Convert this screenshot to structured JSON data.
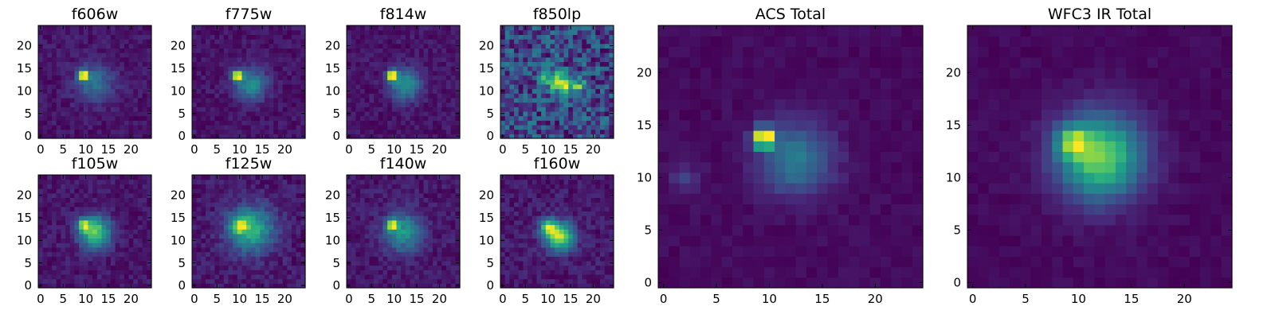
{
  "figure": {
    "background": "#ffffff",
    "colormap": "viridis"
  },
  "chart_data": [
    {
      "id": "f606w",
      "title": "f606w",
      "type": "heatmap",
      "size": "small",
      "grid_size": 25,
      "xlim": [
        0,
        24
      ],
      "ylim": [
        0,
        24
      ],
      "xticks": [
        0,
        5,
        10,
        15,
        20
      ],
      "yticks": [
        0,
        5,
        10,
        15,
        20
      ],
      "peaks": [
        {
          "x": 9.5,
          "y": 13.5,
          "amp": 1.0,
          "sigma": 0.7
        },
        {
          "x": 12,
          "y": 12,
          "amp": 0.28,
          "sigma": 3.0
        }
      ],
      "background": 0.16,
      "noise": 0.1,
      "seed": 11
    },
    {
      "id": "f775w",
      "title": "f775w",
      "type": "heatmap",
      "size": "small",
      "grid_size": 25,
      "xlim": [
        0,
        24
      ],
      "ylim": [
        0,
        24
      ],
      "xticks": [
        0,
        5,
        10,
        15,
        20
      ],
      "yticks": [
        0,
        5,
        10,
        15,
        20
      ],
      "peaks": [
        {
          "x": 9.5,
          "y": 13.5,
          "amp": 0.95,
          "sigma": 0.75
        },
        {
          "x": 12.5,
          "y": 11.5,
          "amp": 0.4,
          "sigma": 2.5
        }
      ],
      "background": 0.16,
      "noise": 0.1,
      "seed": 22
    },
    {
      "id": "f814w",
      "title": "f814w",
      "type": "heatmap",
      "size": "small",
      "grid_size": 25,
      "xlim": [
        0,
        24
      ],
      "ylim": [
        0,
        24
      ],
      "xticks": [
        0,
        5,
        10,
        15,
        20
      ],
      "yticks": [
        0,
        5,
        10,
        15,
        20
      ],
      "peaks": [
        {
          "x": 9.5,
          "y": 13.5,
          "amp": 0.95,
          "sigma": 0.75
        },
        {
          "x": 12.5,
          "y": 11.5,
          "amp": 0.42,
          "sigma": 2.4
        }
      ],
      "background": 0.14,
      "noise": 0.1,
      "seed": 33
    },
    {
      "id": "f850lp",
      "title": "f850lp",
      "type": "heatmap",
      "size": "small",
      "grid_size": 25,
      "xlim": [
        0,
        24
      ],
      "ylim": [
        0,
        24
      ],
      "xticks": [
        0,
        5,
        10,
        15,
        20
      ],
      "yticks": [
        0,
        5,
        10,
        15,
        20
      ],
      "peaks": [
        {
          "x": 13.5,
          "y": 11.5,
          "amp": 0.55,
          "sigma": 1.6
        },
        {
          "x": 17,
          "y": 11,
          "amp": 0.35,
          "sigma": 1.0
        },
        {
          "x": 10,
          "y": 13,
          "amp": 0.3,
          "sigma": 1.5
        }
      ],
      "background": 0.32,
      "noise": 0.34,
      "seed": 44
    },
    {
      "id": "f105w",
      "title": "f105w",
      "type": "heatmap",
      "size": "small",
      "grid_size": 25,
      "xlim": [
        0,
        24
      ],
      "ylim": [
        0,
        24
      ],
      "xticks": [
        0,
        5,
        10,
        15,
        20
      ],
      "yticks": [
        0,
        5,
        10,
        15,
        20
      ],
      "peaks": [
        {
          "x": 9.5,
          "y": 13.5,
          "amp": 0.55,
          "sigma": 0.9
        },
        {
          "x": 12,
          "y": 12,
          "amp": 0.7,
          "sigma": 2.4
        }
      ],
      "background": 0.2,
      "noise": 0.12,
      "seed": 55
    },
    {
      "id": "f125w",
      "title": "f125w",
      "type": "heatmap",
      "size": "small",
      "grid_size": 25,
      "xlim": [
        0,
        24
      ],
      "ylim": [
        0,
        24
      ],
      "xticks": [
        0,
        5,
        10,
        15,
        20
      ],
      "yticks": [
        0,
        5,
        10,
        15,
        20
      ],
      "peaks": [
        {
          "x": 10,
          "y": 13.5,
          "amp": 0.55,
          "sigma": 1.2
        },
        {
          "x": 12.5,
          "y": 12.5,
          "amp": 0.6,
          "sigma": 3.5
        }
      ],
      "background": 0.25,
      "noise": 0.15,
      "seed": 66
    },
    {
      "id": "f140w",
      "title": "f140w",
      "type": "heatmap",
      "size": "small",
      "grid_size": 25,
      "xlim": [
        0,
        24
      ],
      "ylim": [
        0,
        24
      ],
      "xticks": [
        0,
        5,
        10,
        15,
        20
      ],
      "yticks": [
        0,
        5,
        10,
        15,
        20
      ],
      "peaks": [
        {
          "x": 9.5,
          "y": 13.5,
          "amp": 0.85,
          "sigma": 0.8
        },
        {
          "x": 12,
          "y": 12,
          "amp": 0.5,
          "sigma": 3.0
        }
      ],
      "background": 0.22,
      "noise": 0.14,
      "seed": 77
    },
    {
      "id": "f160w",
      "title": "f160w",
      "type": "heatmap",
      "size": "small",
      "grid_size": 25,
      "xlim": [
        0,
        24
      ],
      "ylim": [
        0,
        24
      ],
      "xticks": [
        0,
        5,
        10,
        15,
        20
      ],
      "yticks": [
        0,
        5,
        10,
        15,
        20
      ],
      "peaks": [
        {
          "x": 10,
          "y": 13,
          "amp": 0.55,
          "sigma": 1.2
        },
        {
          "x": 12.5,
          "y": 11,
          "amp": 0.7,
          "sigma": 2.2
        }
      ],
      "background": 0.2,
      "noise": 0.12,
      "seed": 88
    },
    {
      "id": "acs-total",
      "title": "ACS Total",
      "type": "heatmap",
      "size": "large",
      "grid_size": 25,
      "xlim": [
        0,
        24
      ],
      "ylim": [
        0,
        24
      ],
      "xticks": [
        0,
        5,
        10,
        15,
        20
      ],
      "yticks": [
        0,
        5,
        10,
        15,
        20
      ],
      "peaks": [
        {
          "x": 9.5,
          "y": 13.8,
          "amp": 1.0,
          "sigma": 0.65
        },
        {
          "x": 12.5,
          "y": 11.8,
          "amp": 0.35,
          "sigma": 2.4
        },
        {
          "x": 2,
          "y": 10,
          "amp": 0.15,
          "sigma": 1.0
        }
      ],
      "background": 0.12,
      "noise": 0.05,
      "seed": 99
    },
    {
      "id": "wfc3-ir-total",
      "title": "WFC3 IR Total",
      "type": "heatmap",
      "size": "large",
      "grid_size": 25,
      "xlim": [
        0,
        24
      ],
      "ylim": [
        0,
        24
      ],
      "xticks": [
        0,
        5,
        10,
        15,
        20
      ],
      "yticks": [
        0,
        5,
        10,
        15,
        20
      ],
      "peaks": [
        {
          "x": 9.5,
          "y": 13.5,
          "amp": 0.5,
          "sigma": 1.0
        },
        {
          "x": 12,
          "y": 12,
          "amp": 0.75,
          "sigma": 2.8
        }
      ],
      "background": 0.18,
      "noise": 0.05,
      "seed": 111
    }
  ]
}
